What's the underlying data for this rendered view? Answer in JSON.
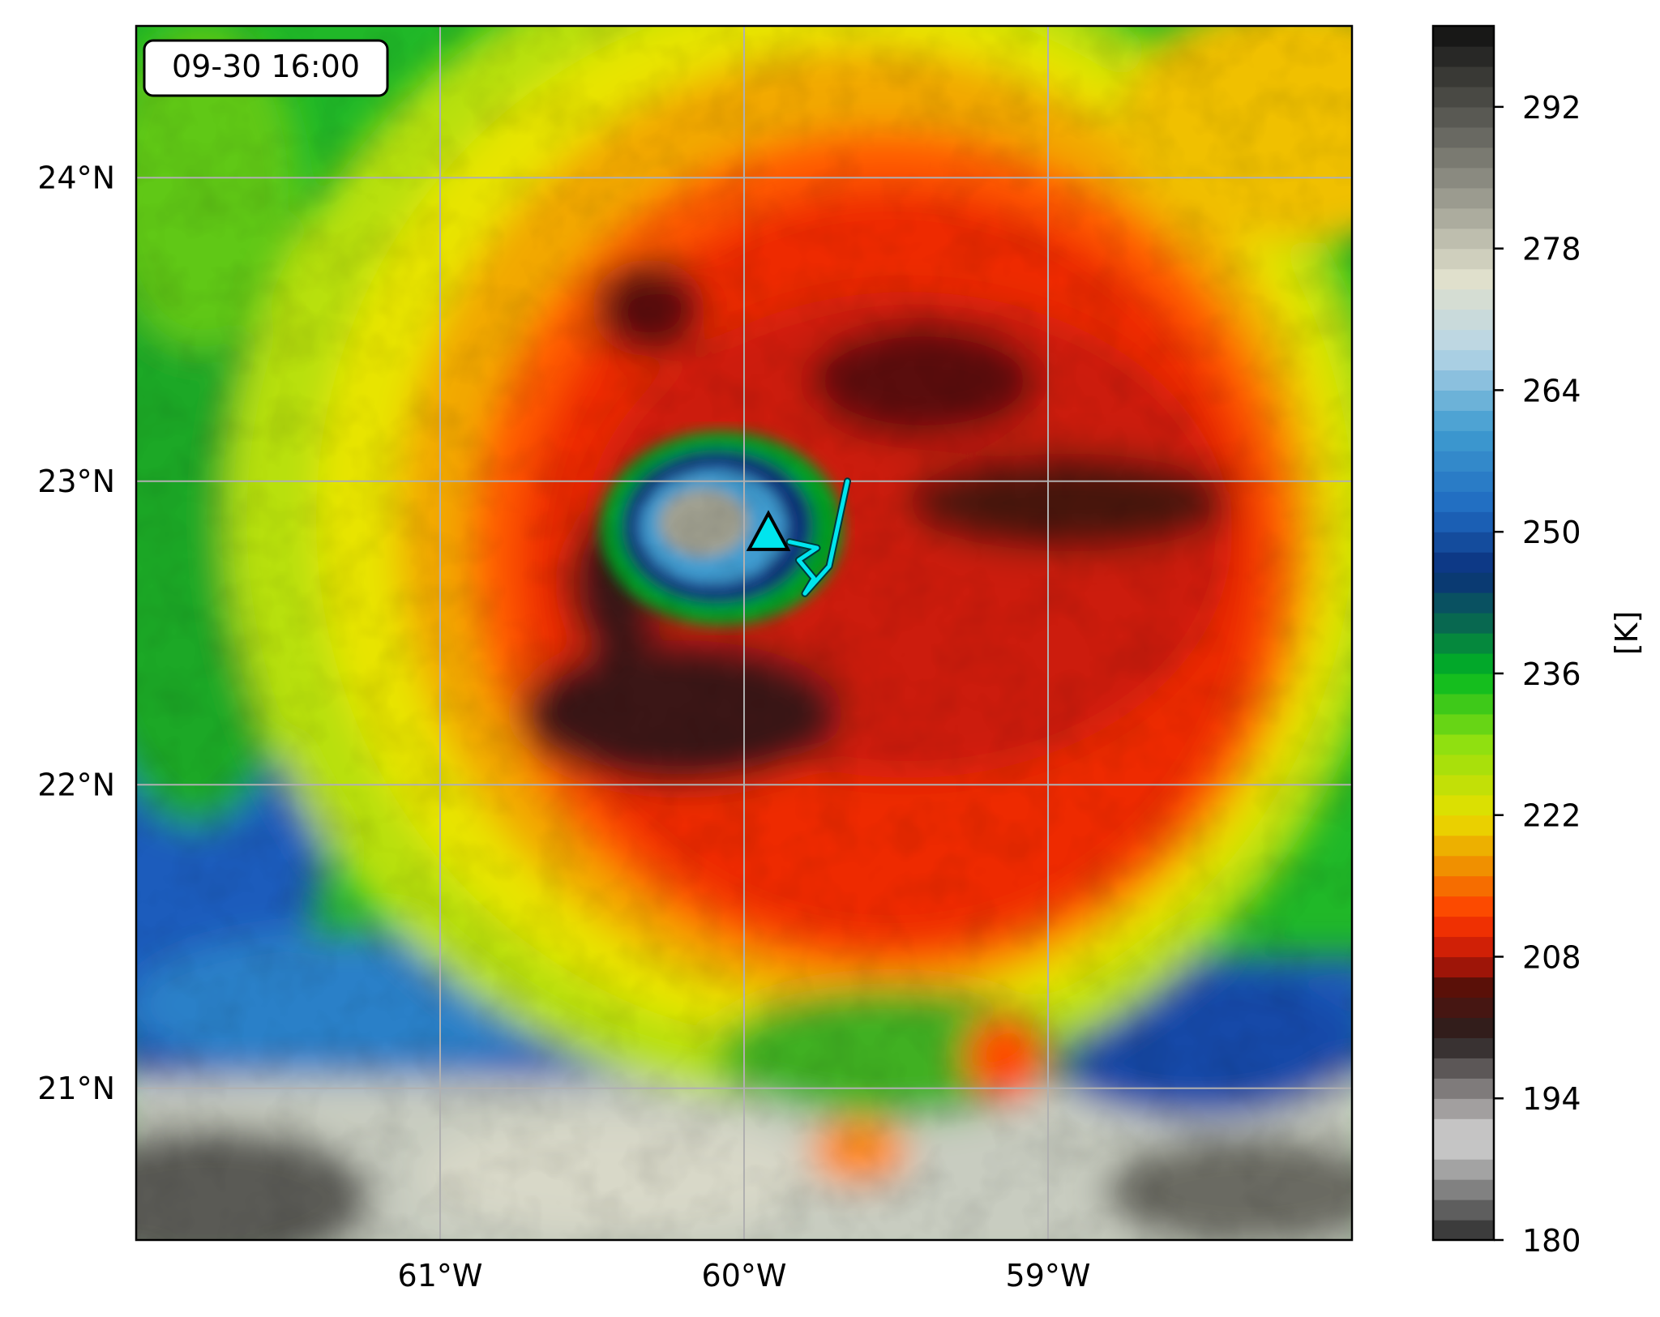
{
  "figure": {
    "timestamp": "09-30 16:00"
  },
  "map": {
    "lat_ticks": [
      {
        "value": 24,
        "label": "24°N"
      },
      {
        "value": 23,
        "label": "23°N"
      },
      {
        "value": 22,
        "label": "22°N"
      },
      {
        "value": 21,
        "label": "21°N"
      }
    ],
    "lon_ticks": [
      {
        "value": -61,
        "label": "61°W"
      },
      {
        "value": -60,
        "label": "60°W"
      },
      {
        "value": -59,
        "label": "59°W"
      }
    ],
    "extent": {
      "lon_min": -62.0,
      "lon_max": -58.0,
      "lat_min": 20.5,
      "lat_max": 24.5
    },
    "gridlines": true,
    "storm_center": {
      "lon": -59.92,
      "lat": 22.83,
      "marker": "triangle",
      "color": "#00e5ee"
    },
    "track": {
      "color": "#00e5ee",
      "points": [
        [
          -59.66,
          23.0
        ],
        [
          -59.72,
          22.72
        ],
        [
          -59.8,
          22.63
        ],
        [
          -59.77,
          22.68
        ],
        [
          -59.82,
          22.74
        ],
        [
          -59.76,
          22.78
        ],
        [
          -59.85,
          22.8
        ]
      ]
    },
    "field": "brightness temperature"
  },
  "colorbar": {
    "label": "[K]",
    "min": 180,
    "max": 300,
    "ticks": [
      180,
      194,
      208,
      222,
      236,
      250,
      264,
      278,
      292
    ],
    "tick_labels": [
      "180",
      "194",
      "208",
      "222",
      "236",
      "250",
      "264",
      "278",
      "292"
    ],
    "colors": {
      "180": "#2b2b2b",
      "190": "#d6d6d6",
      "200": "#282020",
      "205": "#5a1008",
      "208": "#c01808",
      "212": "#ff3800",
      "217": "#f09000",
      "222": "#e8e000",
      "229": "#90e010",
      "236": "#00b820",
      "241": "#086850",
      "246": "#0a2f7a",
      "252": "#1e68c0",
      "260": "#3f9cd0",
      "268": "#b8d6e6",
      "275": "#e0e0cc",
      "285": "#8a8a80",
      "300": "#101010"
    }
  }
}
